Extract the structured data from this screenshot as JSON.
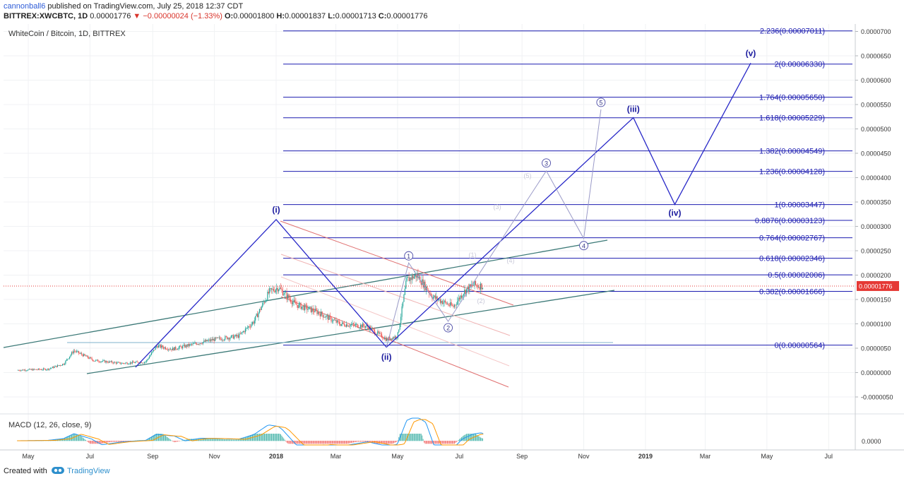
{
  "header": {
    "user": "cannonball6",
    "published": " published on TradingView.com, July 25, 2018 12:37 CDT",
    "symbol": "BITTREX:XWCBTC, 1D",
    "last": "0.00001776",
    "change": "−0.00000024 (−1.33%)",
    "o_label": "O:",
    "o": "0.00001800",
    "h_label": "H:",
    "h": "0.00001837",
    "l_label": "L:",
    "l": "0.00001713",
    "c_label": "C:",
    "c": "0.00001776"
  },
  "chart_title": "WhiteCoin / Bitcoin, 1D, BITTREX",
  "macd_title": "MACD (12, 26, close, 9)",
  "footer": {
    "created": "Created with",
    "brand": "TradingView",
    "logo_icon": "tradingview-logo-icon"
  },
  "colors": {
    "fib": "#1b1bb0",
    "wave": "#2828c8",
    "channel": "#3d7a78",
    "down_channel": "#e07070",
    "up": "#26a69a",
    "down": "#ef5350",
    "price": "#e53935"
  },
  "chart_data": [
    {
      "type": "candlestick",
      "title": "WhiteCoin / Bitcoin, 1D, BITTREX",
      "x_ticks": [
        "May",
        "Jul",
        "Sep",
        "Nov",
        "2018",
        "Mar",
        "May",
        "Jul",
        "Sep",
        "Nov",
        "2019",
        "Mar",
        "May",
        "Jul"
      ],
      "y_ticks": [
        "0.0000700",
        "0.0000650",
        "0.0000600",
        "0.0000550",
        "0.0000500",
        "0.0000450",
        "0.0000400",
        "0.0000350",
        "0.0000300",
        "0.0000250",
        "0.0000200",
        "0.0000150",
        "0.0000100",
        "0.0000050",
        "0.0000000",
        "-0.0000050"
      ],
      "ylim": [
        -7e-06,
        7.15e-05
      ],
      "current_price": "0.00001776",
      "close_approx": {
        "x": [
          "2017-04-20",
          "2017-05-20",
          "2017-06-05",
          "2017-06-15",
          "2017-07-05",
          "2017-08-01",
          "2017-08-25",
          "2017-09-05",
          "2017-09-20",
          "2017-10-15",
          "2017-11-01",
          "2017-11-25",
          "2017-12-10",
          "2017-12-25",
          "2018-01-03",
          "2018-01-20",
          "2018-02-10",
          "2018-03-05",
          "2018-04-01",
          "2018-04-20",
          "2018-05-01",
          "2018-05-10",
          "2018-05-20",
          "2018-06-05",
          "2018-06-25",
          "2018-07-05",
          "2018-07-15",
          "2018-07-25"
        ],
        "y": [
          5e-07,
          7e-07,
          1.8e-06,
          4.5e-06,
          2.5e-06,
          1.9e-06,
          2.2e-06,
          5.5e-06,
          4.8e-06,
          6e-06,
          6.8e-06,
          7.5e-06,
          1.05e-05,
          1.65e-05,
          1.75e-05,
          1.4e-05,
          1.25e-05,
          1e-05,
          9.5e-06,
          6.8e-06,
          7.5e-06,
          1.9e-05,
          2e-05,
          1.55e-05,
          1.35e-05,
          1.65e-05,
          1.8e-05,
          1.776e-05
        ]
      },
      "fib_levels": [
        {
          "label": "2.236(0.00007011)",
          "value": 7.011e-05
        },
        {
          "label": "2(0.00006330)",
          "value": 6.33e-05
        },
        {
          "label": "1.764(0.00005650)",
          "value": 5.65e-05
        },
        {
          "label": "1.618(0.00005229)",
          "value": 5.229e-05
        },
        {
          "label": "1.382(0.00004549)",
          "value": 4.549e-05
        },
        {
          "label": "1.236(0.00004128)",
          "value": 4.128e-05
        },
        {
          "label": "1(0.00003447)",
          "value": 3.447e-05
        },
        {
          "label": "0.8876(0.00003123)",
          "value": 3.123e-05
        },
        {
          "label": "0.764(0.00002767)",
          "value": 2.767e-05
        },
        {
          "label": "0.618(0.00002346)",
          "value": 2.346e-05
        },
        {
          "label": "0.5(0.00002006)",
          "value": 2.006e-05
        },
        {
          "label": "0.382(0.00001666)",
          "value": 1.666e-05
        },
        {
          "label": "0(0.00000564)",
          "value": 5.64e-06
        }
      ],
      "waves": [
        {
          "label": "(i)",
          "x": "2018-01-01",
          "y": 3.14e-05
        },
        {
          "label": "(ii)",
          "x": "2018-04-20",
          "y": 5.2e-06
        },
        {
          "label": "(iii)",
          "x": "2018-12-20",
          "y": 5.23e-05
        },
        {
          "label": "(iv)",
          "x": "2019-01-30",
          "y": 3.45e-05
        },
        {
          "label": "(v)",
          "x": "2019-04-15",
          "y": 6.35e-05
        }
      ],
      "sub_waves": [
        {
          "label": "1",
          "x": "2018-05-12",
          "y": 2.25e-05
        },
        {
          "label": "2",
          "x": "2018-06-20",
          "y": 1.05e-05
        },
        {
          "label": "3",
          "x": "2018-09-25",
          "y": 4.14e-05
        },
        {
          "label": "4",
          "x": "2018-11-01",
          "y": 2.75e-05
        },
        {
          "label": "5",
          "x": "2018-11-18",
          "y": 5.4e-05
        }
      ],
      "faint_labels": [
        "(1)",
        "(2)",
        "(3)",
        "(4)",
        "(5)"
      ]
    },
    {
      "type": "macd",
      "title": "MACD (12, 26, close, 9)",
      "y_ticks": [
        "0.0000"
      ]
    }
  ]
}
